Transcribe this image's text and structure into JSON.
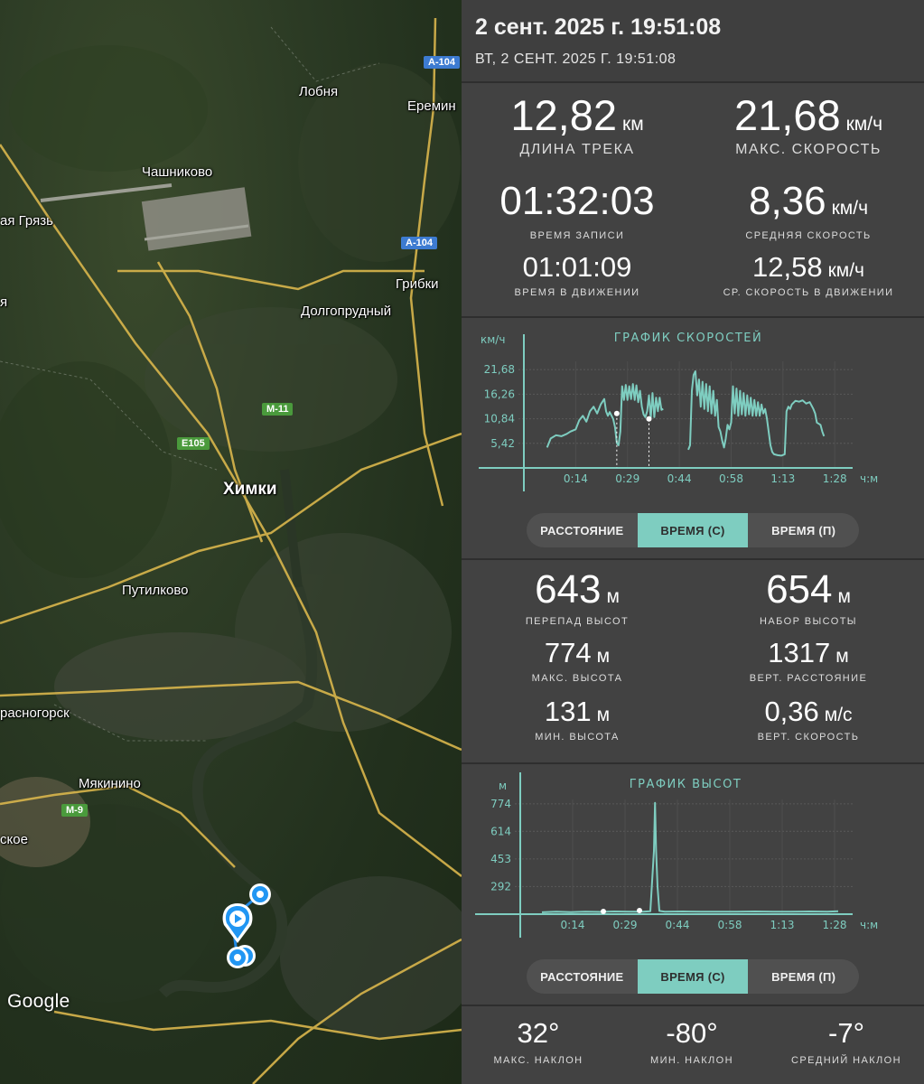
{
  "map": {
    "labels": [
      {
        "text": "Лобня"
      },
      {
        "text": "Еремин"
      },
      {
        "text": "Чашниково"
      },
      {
        "text": "ая Грязь"
      },
      {
        "text": "Грибки"
      },
      {
        "text": "Долгопрудный"
      },
      {
        "text": "Химки"
      },
      {
        "text": "Путилково"
      },
      {
        "text": "расногорск"
      },
      {
        "text": "Мякинино"
      },
      {
        "text": "ское"
      },
      {
        "text": "я"
      }
    ],
    "shields": [
      {
        "text": "A-104",
        "color": "#3d7bd1"
      },
      {
        "text": "A-104",
        "color": "#3d7bd1"
      },
      {
        "text": "M-11",
        "color": "#4a9a3c"
      },
      {
        "text": "E105",
        "color": "#4a9a3c"
      },
      {
        "text": "M-9",
        "color": "#4a9a3c"
      }
    ],
    "attribution": "Google",
    "marker_icons": [
      "play-marker-icon",
      "point-marker-icon"
    ]
  },
  "header": {
    "title": "2 сент. 2025 г. 19:51:08",
    "subtitle": "ВТ, 2 СЕНТ. 2025 Г. 19:51:08"
  },
  "summary": {
    "track_length": {
      "value": "12,82",
      "unit": "км",
      "label": "ДЛИНА ТРЕКА"
    },
    "max_speed": {
      "value": "21,68",
      "unit": "км/ч",
      "label": "МАКС. СКОРОСТЬ"
    },
    "record_time": {
      "value": "01:32:03",
      "label": "ВРЕМЯ ЗАПИСИ"
    },
    "avg_speed": {
      "value": "8,36",
      "unit": "км/ч",
      "label": "СРЕДНЯЯ СКОРОСТЬ"
    },
    "moving_time": {
      "value": "01:01:09",
      "label": "ВРЕМЯ В ДВИЖЕНИИ"
    },
    "moving_avg_speed": {
      "value": "12,58",
      "unit": "км/ч",
      "label": "СР. СКОРОСТЬ В ДВИЖЕНИИ"
    }
  },
  "speed_toggle": {
    "options": [
      "РАССТОЯНИЕ",
      "ВРЕМЯ (С)",
      "ВРЕМЯ (П)"
    ],
    "active": 1
  },
  "elevation": {
    "diff": {
      "value": "643",
      "unit": "м",
      "label": "ПЕРЕПАД ВЫСОТ"
    },
    "gain": {
      "value": "654",
      "unit": "м",
      "label": "НАБОР ВЫСОТЫ"
    },
    "max": {
      "value": "774",
      "unit": "м",
      "label": "МАКС. ВЫСОТА"
    },
    "vert_dist": {
      "value": "1317",
      "unit": "м",
      "label": "ВЕРТ. РАССТОЯНИЕ"
    },
    "min": {
      "value": "131",
      "unit": "м",
      "label": "МИН. ВЫСОТА"
    },
    "vert_speed": {
      "value": "0,36",
      "unit": "м/с",
      "label": "ВЕРТ. СКОРОСТЬ"
    }
  },
  "elev_toggle": {
    "options": [
      "РАССТОЯНИЕ",
      "ВРЕМЯ (С)",
      "ВРЕМЯ (П)"
    ],
    "active": 1
  },
  "slope": {
    "max": {
      "value": "32°",
      "label": "МАКС. НАКЛОН"
    },
    "min": {
      "value": "-80°",
      "label": "МИН. НАКЛОН"
    },
    "avg": {
      "value": "-7°",
      "label": "СРЕДНИЙ НАКЛОН"
    }
  },
  "colors": {
    "accent": "#7ecdc0",
    "panel": "#424242",
    "divider": "#2e2e2e"
  },
  "chart_data": [
    {
      "type": "line",
      "title": "ГРАФИК СКОРОСТЕЙ",
      "ylabel": "км/ч",
      "xlabel": "ч:м",
      "x_ticks": [
        "0:14",
        "0:29",
        "0:44",
        "0:58",
        "1:13",
        "1:28"
      ],
      "y_ticks": [
        "5,42",
        "10,84",
        "16,26",
        "21,68"
      ],
      "ylim": [
        0,
        23.5
      ],
      "xlim": [
        0,
        92
      ],
      "grid": true,
      "series": [
        {
          "values": [
            [
              6.5,
              4.5
            ],
            [
              7.5,
              6.5
            ],
            [
              9,
              7.2
            ],
            [
              10.5,
              7.0
            ],
            [
              12,
              7.5
            ],
            [
              13,
              8.0
            ],
            [
              14.5,
              8.5
            ],
            [
              15.5,
              10.5
            ],
            [
              16.5,
              11.5
            ],
            [
              17.5,
              10.2
            ],
            [
              18.5,
              12.5
            ],
            [
              19.5,
              13.5
            ],
            [
              20.5,
              12.0
            ],
            [
              21.5,
              14.0
            ],
            [
              22.5,
              15.2
            ],
            [
              23,
              12.5
            ],
            [
              23.5,
              11.5
            ],
            [
              24,
              12.3
            ],
            [
              24.5,
              11.6
            ],
            [
              25,
              10.8
            ],
            [
              25.5,
              9.0
            ],
            [
              26,
              5.5
            ],
            [
              26.5,
              5.0
            ],
            [
              27,
              8.0
            ],
            [
              27.5,
              18.0
            ],
            [
              28,
              15.0
            ],
            [
              28.5,
              18.3
            ],
            [
              29,
              15.0
            ],
            [
              29.5,
              18.0
            ],
            [
              30,
              15.2
            ],
            [
              30.5,
              18.5
            ],
            [
              31,
              15.0
            ],
            [
              31.5,
              18.2
            ],
            [
              32,
              14.5
            ],
            [
              32.5,
              17.0
            ],
            [
              33,
              13.5
            ],
            [
              33.5,
              11.8
            ],
            [
              34,
              11.2
            ],
            [
              34.5,
              12.5
            ],
            [
              35,
              16.0
            ],
            [
              35.5,
              11.0
            ],
            [
              36,
              16.5
            ],
            [
              36.5,
              11.2
            ],
            [
              37,
              15.5
            ],
            [
              37.5,
              12.5
            ],
            [
              38,
              15.5
            ],
            [
              38.5,
              12.8
            ],
            [
              39,
              13.0
            ]
          ]
        },
        {
          "values": [
            [
              46,
              4.0
            ],
            [
              46.5,
              5.0
            ],
            [
              47,
              17.0
            ],
            [
              47.5,
              20.5
            ],
            [
              48,
              21.3
            ],
            [
              48.5,
              16.0
            ],
            [
              49,
              19.5
            ],
            [
              49.5,
              13.5
            ],
            [
              50,
              19.0
            ],
            [
              50.5,
              13.0
            ],
            [
              51,
              18.5
            ],
            [
              51.5,
              12.5
            ],
            [
              52,
              18.0
            ],
            [
              52.5,
              12.0
            ],
            [
              53,
              17.0
            ],
            [
              53.5,
              11.5
            ],
            [
              54,
              15.0
            ],
            [
              54.5,
              9.0
            ],
            [
              55,
              8.0
            ],
            [
              55.5,
              6.0
            ],
            [
              56,
              4.5
            ],
            [
              56.5,
              6.5
            ],
            [
              57,
              9.5
            ],
            [
              57.5,
              8.5
            ],
            [
              58,
              10.0
            ],
            [
              58.5,
              18.0
            ],
            [
              59,
              12.0
            ],
            [
              59.5,
              17.5
            ],
            [
              60,
              11.5
            ],
            [
              60.5,
              17.0
            ],
            [
              61,
              11.8
            ],
            [
              61.5,
              16.5
            ],
            [
              62,
              11.5
            ],
            [
              62.5,
              16.0
            ],
            [
              63,
              11.8
            ],
            [
              63.5,
              15.5
            ],
            [
              64,
              11.5
            ],
            [
              64.5,
              15.0
            ],
            [
              65,
              11.5
            ],
            [
              65.5,
              14.5
            ],
            [
              66,
              11.5
            ],
            [
              66.5,
              14.0
            ],
            [
              67,
              12.0
            ],
            [
              67.5,
              13.0
            ],
            [
              68,
              11.0
            ],
            [
              68.5,
              8.0
            ],
            [
              69,
              5.0
            ],
            [
              69.5,
              3.5
            ],
            [
              70,
              3.0
            ],
            [
              71,
              2.8
            ],
            [
              72,
              2.7
            ],
            [
              73,
              3.0
            ],
            [
              73.5,
              12.5
            ],
            [
              74,
              13.5
            ],
            [
              74.5,
              13.0
            ],
            [
              75,
              14.0
            ],
            [
              76,
              14.8
            ],
            [
              77,
              14.6
            ],
            [
              78,
              14.9
            ],
            [
              79,
              14.2
            ],
            [
              80,
              14.5
            ],
            [
              81,
              13.0
            ],
            [
              81.5,
              12.0
            ],
            [
              82,
              10.0
            ],
            [
              83,
              9.5
            ],
            [
              83.5,
              8.0
            ],
            [
              84,
              7.0
            ]
          ]
        }
      ],
      "markers": [
        [
          26,
          12.0
        ],
        [
          35,
          10.8
        ]
      ]
    },
    {
      "type": "line",
      "title": "ГРАФИК ВЫСОТ",
      "ylabel": "м",
      "xlabel": "ч:м",
      "x_ticks": [
        "0:14",
        "0:29",
        "0:44",
        "0:58",
        "1:13",
        "1:28"
      ],
      "y_ticks": [
        "292",
        "453",
        "614",
        "774"
      ],
      "ylim": [
        131,
        800
      ],
      "xlim": [
        0,
        92
      ],
      "grid": true,
      "series": [
        {
          "values": [
            [
              6,
              142
            ],
            [
              10,
              145
            ],
            [
              14,
              143
            ],
            [
              18,
              146
            ],
            [
              22,
              144
            ],
            [
              26,
              147
            ],
            [
              30,
              145
            ],
            [
              34,
              146
            ],
            [
              36,
              148
            ],
            [
              37,
              500
            ],
            [
              37.3,
              780
            ],
            [
              37.6,
              500
            ],
            [
              38,
              290
            ],
            [
              38.5,
              150
            ],
            [
              40,
              146
            ],
            [
              45,
              147
            ],
            [
              50,
              145
            ],
            [
              55,
              146
            ],
            [
              60,
              145
            ],
            [
              65,
              147
            ],
            [
              70,
              146
            ],
            [
              75,
              145
            ],
            [
              80,
              147
            ],
            [
              85,
              146
            ],
            [
              88,
              148
            ]
          ]
        }
      ],
      "markers": [
        [
          23,
          147
        ],
        [
          33,
          152
        ]
      ]
    }
  ]
}
